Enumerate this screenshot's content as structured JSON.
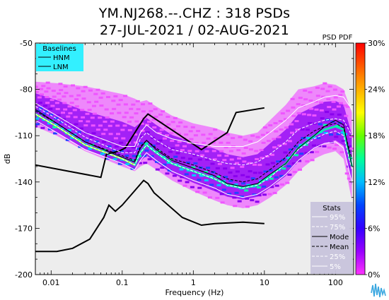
{
  "title": {
    "line1": "YM.NJ268.--.CHZ : 318 PSDs",
    "line2": "27-JUL-2021 / 02-AUG-2021"
  },
  "chart_data": {
    "type": "heatmap",
    "xlabel": "Frequency (Hz)",
    "ylabel": "dB",
    "x_scale": "log",
    "xlim": [
      0.006,
      180
    ],
    "ylim": [
      -200,
      -50
    ],
    "x_ticks": [
      {
        "value": 0.01,
        "label": "0.01"
      },
      {
        "value": 0.1,
        "label": "0.1"
      },
      {
        "value": 1,
        "label": "1"
      },
      {
        "value": 10,
        "label": "10"
      },
      {
        "value": 100,
        "label": "100"
      }
    ],
    "y_ticks": [
      {
        "value": -50,
        "label": "-50"
      },
      {
        "value": -80,
        "label": "-80"
      },
      {
        "value": -110,
        "label": "-110"
      },
      {
        "value": -140,
        "label": "-140"
      },
      {
        "value": -170,
        "label": "-170"
      },
      {
        "value": -200,
        "label": "-200"
      }
    ],
    "colorbar": {
      "title": "PSD PDF",
      "range": [
        0,
        30
      ],
      "ticks": [
        {
          "value": 30,
          "label": "30%"
        },
        {
          "value": 24,
          "label": "24%"
        },
        {
          "value": 18,
          "label": "18%"
        },
        {
          "value": 12,
          "label": "12%"
        },
        {
          "value": 6,
          "label": "6%"
        },
        {
          "value": 0,
          "label": "0%"
        }
      ],
      "colors": [
        "#ff33ff",
        "#8800ff",
        "#0000ff",
        "#00ccff",
        "#00ff99",
        "#99ff00",
        "#ffff00",
        "#ff7700",
        "#ff0000"
      ]
    },
    "baselines": {
      "title": "Baselines",
      "legend_placement": "top-left",
      "entries": [
        "HNM",
        "LNM"
      ],
      "HNM": {
        "freq": [
          0.006,
          0.05,
          0.06,
          0.09,
          0.11,
          0.2,
          0.23,
          1.3,
          3,
          4,
          10
        ],
        "db": [
          -129,
          -137,
          -122,
          -120,
          -118,
          -99,
          -96,
          -119,
          -108,
          -95,
          -92
        ]
      },
      "LNM": {
        "freq": [
          0.006,
          0.012,
          0.02,
          0.035,
          0.055,
          0.065,
          0.08,
          0.1,
          0.2,
          0.23,
          0.28,
          0.7,
          1.3,
          2,
          5,
          10
        ],
        "db": [
          -185,
          -185,
          -183,
          -177,
          -163,
          -155,
          -159,
          -155,
          -139,
          -141,
          -147,
          -163,
          -168,
          -167,
          -166,
          -167
        ]
      }
    },
    "stats": {
      "title": "Stats",
      "legend_placement": "bottom-right",
      "entries": [
        "95%",
        "75%",
        "Mode",
        "Mean",
        "25%",
        "5%"
      ],
      "freq": [
        0.006,
        0.012,
        0.03,
        0.1,
        0.15,
        0.18,
        0.22,
        0.3,
        0.5,
        1,
        2,
        3,
        5,
        8,
        12,
        20,
        30,
        50,
        70,
        100,
        130,
        170
      ],
      "p95": [
        -89,
        -97,
        -108,
        -117,
        -117,
        -108,
        -103,
        -108,
        -112,
        -115,
        -117,
        -117,
        -117,
        -114,
        -108,
        -100,
        -92,
        -88,
        -85,
        -84,
        -85,
        -93
      ],
      "p75": [
        -91,
        -99,
        -111,
        -121,
        -121,
        -112,
        -108,
        -113,
        -119,
        -122,
        -126,
        -128,
        -129,
        -127,
        -122,
        -114,
        -106,
        -102,
        -100,
        -99,
        -100,
        -110
      ],
      "mode": [
        -93,
        -102,
        -114,
        -124,
        -127,
        -118,
        -113,
        -119,
        -126,
        -131,
        -136,
        -141,
        -143,
        -141,
        -135,
        -128,
        -118,
        -110,
        -104,
        -100,
        -103,
        -130
      ],
      "mean": [
        -94,
        -102,
        -114,
        -123,
        -126,
        -117,
        -113,
        -118,
        -125,
        -129,
        -134,
        -138,
        -140,
        -138,
        -132,
        -124,
        -114,
        -107,
        -104,
        -102,
        -105,
        -125
      ],
      "p25": [
        -96,
        -104,
        -116,
        -125,
        -129,
        -121,
        -116,
        -121,
        -128,
        -133,
        -138,
        -142,
        -144,
        -142,
        -137,
        -128,
        -119,
        -112,
        -109,
        -107,
        -110,
        -132
      ],
      "p5": [
        -100,
        -108,
        -119,
        -128,
        -132,
        -126,
        -121,
        -126,
        -133,
        -139,
        -144,
        -148,
        -150,
        -148,
        -143,
        -135,
        -126,
        -118,
        -115,
        -114,
        -118,
        -140
      ]
    },
    "pdf_band": {
      "freq": [
        0.006,
        0.012,
        0.03,
        0.1,
        0.15,
        0.18,
        0.22,
        0.3,
        0.5,
        1,
        2,
        3,
        5,
        8,
        12,
        20,
        30,
        50,
        70,
        100,
        130,
        170
      ],
      "center": [
        -96,
        -104,
        -116,
        -125,
        -129,
        -121,
        -116,
        -121,
        -128,
        -133,
        -138,
        -142,
        -144,
        -142,
        -136,
        -128,
        -118,
        -110,
        -106,
        -104,
        -106,
        -130
      ],
      "upper": [
        -75,
        -76,
        -78,
        -83,
        -86,
        -88,
        -87,
        -91,
        -97,
        -102,
        -105,
        -108,
        -110,
        -108,
        -100,
        -90,
        -80,
        -78,
        -76,
        -77,
        -80,
        -95
      ],
      "lower": [
        -104,
        -110,
        -120,
        -130,
        -133,
        -130,
        -128,
        -132,
        -139,
        -146,
        -152,
        -155,
        -157,
        -155,
        -150,
        -142,
        -133,
        -125,
        -122,
        -120,
        -125,
        -152
      ]
    }
  }
}
